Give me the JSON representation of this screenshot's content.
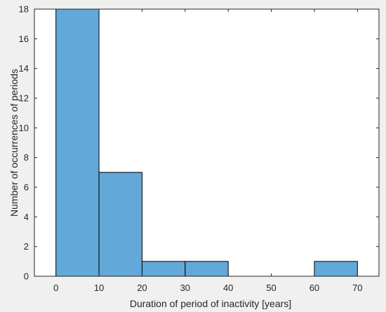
{
  "chart_data": {
    "type": "bar",
    "subtype": "histogram",
    "xlabel": "Duration of period of inactivity [years]",
    "ylabel": "Number of occurrences of periods",
    "xlim": [
      -5,
      75
    ],
    "ylim": [
      0,
      18
    ],
    "xticks": [
      "0",
      "10",
      "20",
      "30",
      "40",
      "50",
      "60",
      "70"
    ],
    "yticks": [
      "0",
      "2",
      "4",
      "6",
      "8",
      "10",
      "12",
      "14",
      "16",
      "18"
    ],
    "bins": [
      {
        "start": 0,
        "end": 10,
        "value": 18
      },
      {
        "start": 10,
        "end": 20,
        "value": 7
      },
      {
        "start": 20,
        "end": 30,
        "value": 1
      },
      {
        "start": 30,
        "end": 40,
        "value": 1
      },
      {
        "start": 40,
        "end": 50,
        "value": 0
      },
      {
        "start": 50,
        "end": 60,
        "value": 0
      },
      {
        "start": 60,
        "end": 70,
        "value": 1
      }
    ],
    "bar_color": "#62a8d9",
    "grid": false,
    "legend": "none"
  }
}
